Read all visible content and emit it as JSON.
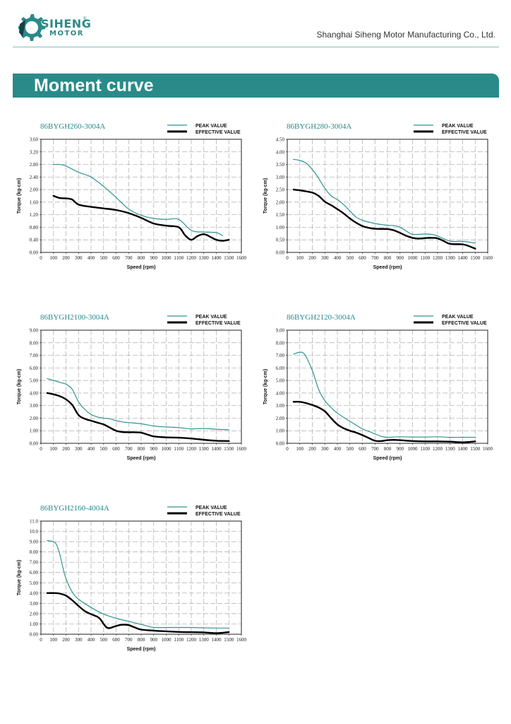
{
  "header": {
    "logo_top": "SIHENG",
    "logo_bottom": "MOTOR",
    "logo_reg": "®",
    "company": "Shanghai Siheng Motor Manufacturing Co., Ltd."
  },
  "banner": {
    "title": "Moment curve"
  },
  "colors": {
    "accent": "#2a8a8a",
    "peak": "#2f9590",
    "effective": "#000000"
  },
  "legend": {
    "peak": "PEAK VALUE",
    "effective": "EFFECTIVE VALUE"
  },
  "chart_data": [
    {
      "type": "line",
      "title": "86BYGH260-3004A",
      "xlabel": "Speed (rpm)",
      "ylabel": "Torque (kg-cm)",
      "xlim": [
        0,
        1600
      ],
      "ylim": [
        0,
        3.6
      ],
      "xticks": [
        "0",
        "100",
        "200",
        "300",
        "400",
        "500",
        "600",
        "700",
        "800",
        "900",
        "1000",
        "1100",
        "1200",
        "1300",
        "1400",
        "1500",
        "1600"
      ],
      "yticks": [
        "0.00",
        "0.40",
        "0.80",
        "1.20",
        "1.60",
        "2.00",
        "2.40",
        "2.80",
        "3.20",
        "3.60"
      ],
      "grid": true,
      "legend_position": "top-right",
      "series": [
        {
          "name": "PEAK VALUE",
          "x": [
            100,
            150,
            200,
            300,
            400,
            500,
            600,
            700,
            800,
            900,
            1000,
            1100,
            1200,
            1300,
            1400,
            1450
          ],
          "y": [
            2.8,
            2.8,
            2.75,
            2.55,
            2.4,
            2.1,
            1.75,
            1.38,
            1.18,
            1.08,
            1.05,
            1.05,
            0.7,
            0.65,
            0.63,
            0.53
          ]
        },
        {
          "name": "EFFECTIVE VALUE",
          "x": [
            100,
            150,
            200,
            250,
            300,
            400,
            500,
            600,
            700,
            800,
            900,
            1000,
            1100,
            1150,
            1200,
            1250,
            1300,
            1350,
            1400,
            1450,
            1500
          ],
          "y": [
            1.8,
            1.73,
            1.72,
            1.68,
            1.52,
            1.45,
            1.4,
            1.35,
            1.25,
            1.1,
            0.92,
            0.85,
            0.8,
            0.55,
            0.4,
            0.52,
            0.58,
            0.5,
            0.4,
            0.37,
            0.4
          ]
        }
      ]
    },
    {
      "type": "line",
      "title": "86BYGH280-3004A",
      "xlabel": "Speed (rpm)",
      "ylabel": "Torque (kg-cm)",
      "xlim": [
        0,
        1600
      ],
      "ylim": [
        0,
        4.5
      ],
      "xticks": [
        "0",
        "100",
        "200",
        "300",
        "400",
        "500",
        "600",
        "700",
        "800",
        "900",
        "1000",
        "1100",
        "1200",
        "1300",
        "1400",
        "1500",
        "1600"
      ],
      "yticks": [
        "0.00",
        "0.50",
        "1.00",
        "1.50",
        "2.00",
        "2.50",
        "3.00",
        "3.50",
        "4.00",
        "4.50"
      ],
      "grid": true,
      "legend_position": "top-right",
      "series": [
        {
          "name": "PEAK VALUE",
          "x": [
            50,
            100,
            150,
            200,
            250,
            300,
            350,
            400,
            450,
            500,
            550,
            600,
            700,
            800,
            850,
            900,
            950,
            1000,
            1100,
            1150,
            1200,
            1300,
            1400,
            1500
          ],
          "y": [
            3.7,
            3.66,
            3.55,
            3.3,
            2.95,
            2.55,
            2.25,
            2.1,
            1.9,
            1.65,
            1.4,
            1.28,
            1.15,
            1.08,
            1.07,
            1.0,
            0.85,
            0.72,
            0.73,
            0.72,
            0.65,
            0.45,
            0.44,
            0.37
          ]
        },
        {
          "name": "EFFECTIVE VALUE",
          "x": [
            50,
            100,
            200,
            250,
            300,
            350,
            400,
            450,
            500,
            550,
            600,
            650,
            700,
            800,
            850,
            900,
            950,
            1000,
            1050,
            1100,
            1150,
            1200,
            1250,
            1300,
            1400,
            1450,
            1500
          ],
          "y": [
            2.5,
            2.47,
            2.38,
            2.25,
            2.02,
            1.88,
            1.72,
            1.55,
            1.35,
            1.18,
            1.05,
            0.98,
            0.94,
            0.93,
            0.88,
            0.78,
            0.66,
            0.58,
            0.55,
            0.57,
            0.58,
            0.56,
            0.45,
            0.34,
            0.32,
            0.25,
            0.15
          ]
        }
      ]
    },
    {
      "type": "line",
      "title": "86BYGH2100-3004A",
      "xlabel": "Speed (rpm)",
      "ylabel": "Torque (kg-cm)",
      "xlim": [
        0,
        1600
      ],
      "ylim": [
        0,
        9
      ],
      "xticks": [
        "0",
        "100",
        "200",
        "300",
        "400",
        "500",
        "600",
        "700",
        "800",
        "900",
        "1000",
        "1100",
        "1200",
        "1300",
        "1400",
        "1500",
        "1600"
      ],
      "yticks": [
        "0.00",
        "1.00",
        "2.00",
        "3.00",
        "4.00",
        "5.00",
        "6.00",
        "7.00",
        "8.00",
        "9.00"
      ],
      "grid": true,
      "legend_position": "top-right",
      "series": [
        {
          "name": "PEAK VALUE",
          "x": [
            50,
            100,
            150,
            200,
            250,
            300,
            350,
            400,
            450,
            500,
            550,
            600,
            650,
            700,
            800,
            900,
            1000,
            1100,
            1200,
            1300,
            1400,
            1500
          ],
          "y": [
            5.15,
            5.0,
            4.85,
            4.7,
            4.3,
            3.3,
            2.7,
            2.3,
            2.1,
            2.0,
            1.95,
            1.8,
            1.7,
            1.65,
            1.55,
            1.38,
            1.3,
            1.25,
            1.15,
            1.18,
            1.12,
            1.08
          ]
        },
        {
          "name": "EFFECTIVE VALUE",
          "x": [
            50,
            100,
            150,
            200,
            250,
            300,
            350,
            400,
            450,
            500,
            550,
            600,
            650,
            700,
            750,
            800,
            850,
            900,
            1000,
            1100,
            1200,
            1300,
            1400,
            1500
          ],
          "y": [
            4.0,
            3.9,
            3.75,
            3.5,
            3.05,
            2.25,
            1.95,
            1.8,
            1.65,
            1.5,
            1.25,
            1.0,
            0.9,
            0.88,
            0.88,
            0.85,
            0.7,
            0.55,
            0.47,
            0.45,
            0.38,
            0.28,
            0.2,
            0.18
          ]
        }
      ]
    },
    {
      "type": "line",
      "title": "86BYGH2120-3004A",
      "xlabel": "Speed (rpm)",
      "ylabel": "Torque (kg-cm)",
      "xlim": [
        0,
        1600
      ],
      "ylim": [
        0,
        9
      ],
      "xticks": [
        "0",
        "100",
        "200",
        "300",
        "400",
        "500",
        "600",
        "700",
        "800",
        "900",
        "1000",
        "1100",
        "1200",
        "1300",
        "1400",
        "1500",
        "1600"
      ],
      "yticks": [
        "0.00",
        "1.00",
        "2.00",
        "3.00",
        "4.00",
        "5.00",
        "6.00",
        "7.00",
        "8.00",
        "9.00"
      ],
      "grid": true,
      "legend_position": "top-right",
      "series": [
        {
          "name": "PEAK VALUE",
          "x": [
            50,
            100,
            125,
            150,
            200,
            250,
            300,
            350,
            400,
            500,
            600,
            650,
            700,
            750,
            800,
            900,
            1000,
            1100,
            1200,
            1300,
            1400,
            1500
          ],
          "y": [
            7.1,
            7.25,
            7.2,
            6.9,
            5.8,
            4.3,
            3.4,
            2.85,
            2.4,
            1.75,
            1.15,
            0.95,
            0.75,
            0.55,
            0.48,
            0.52,
            0.5,
            0.5,
            0.52,
            0.47,
            0.48,
            0.48
          ]
        },
        {
          "name": "EFFECTIVE VALUE",
          "x": [
            50,
            100,
            150,
            200,
            250,
            300,
            350,
            400,
            450,
            500,
            550,
            600,
            650,
            700,
            750,
            800,
            850,
            900,
            1000,
            1100,
            1200,
            1300,
            1400,
            1500
          ],
          "y": [
            3.3,
            3.3,
            3.2,
            3.05,
            2.85,
            2.55,
            2.0,
            1.5,
            1.2,
            1.0,
            0.85,
            0.65,
            0.42,
            0.2,
            0.18,
            0.25,
            0.27,
            0.25,
            0.18,
            0.15,
            0.15,
            0.13,
            0.08,
            0.15
          ]
        }
      ]
    },
    {
      "type": "line",
      "title": "86BYGH2160-4004A",
      "xlabel": "Speed (rpm)",
      "ylabel": "Torque (kg-cm)",
      "xlim": [
        0,
        1600
      ],
      "ylim": [
        0,
        11
      ],
      "xticks": [
        "0",
        "100",
        "200",
        "300",
        "400",
        "500",
        "600",
        "700",
        "800",
        "900",
        "1000",
        "1100",
        "1200",
        "1300",
        "1400",
        "1500",
        "1600"
      ],
      "yticks": [
        "0.00",
        "1.00",
        "2.00",
        "3.00",
        "4.00",
        "5.00",
        "6.00",
        "7.00",
        "8.00",
        "9.00",
        "10.0",
        "11.0"
      ],
      "grid": true,
      "legend_position": "top-right",
      "series": [
        {
          "name": "PEAK VALUE",
          "x": [
            50,
            100,
            125,
            150,
            175,
            200,
            250,
            300,
            400,
            500,
            600,
            700,
            800,
            850,
            900,
            1000,
            1100,
            1200,
            1300,
            1400,
            1500
          ],
          "y": [
            9.1,
            9.0,
            8.7,
            7.8,
            6.5,
            5.4,
            4.1,
            3.4,
            2.6,
            1.95,
            1.55,
            1.25,
            0.95,
            0.8,
            0.65,
            0.65,
            0.65,
            0.65,
            0.62,
            0.6,
            0.6
          ]
        },
        {
          "name": "EFFECTIVE VALUE",
          "x": [
            50,
            100,
            150,
            200,
            250,
            300,
            350,
            400,
            450,
            475,
            500,
            525,
            550,
            600,
            650,
            700,
            750,
            800,
            900,
            1000,
            1100,
            1200,
            1300,
            1400,
            1500
          ],
          "y": [
            4.0,
            4.0,
            3.95,
            3.75,
            3.3,
            2.75,
            2.25,
            1.95,
            1.7,
            1.45,
            1.0,
            0.65,
            0.6,
            0.8,
            0.92,
            0.88,
            0.65,
            0.45,
            0.35,
            0.28,
            0.22,
            0.2,
            0.18,
            0.1,
            0.2
          ]
        }
      ]
    }
  ]
}
